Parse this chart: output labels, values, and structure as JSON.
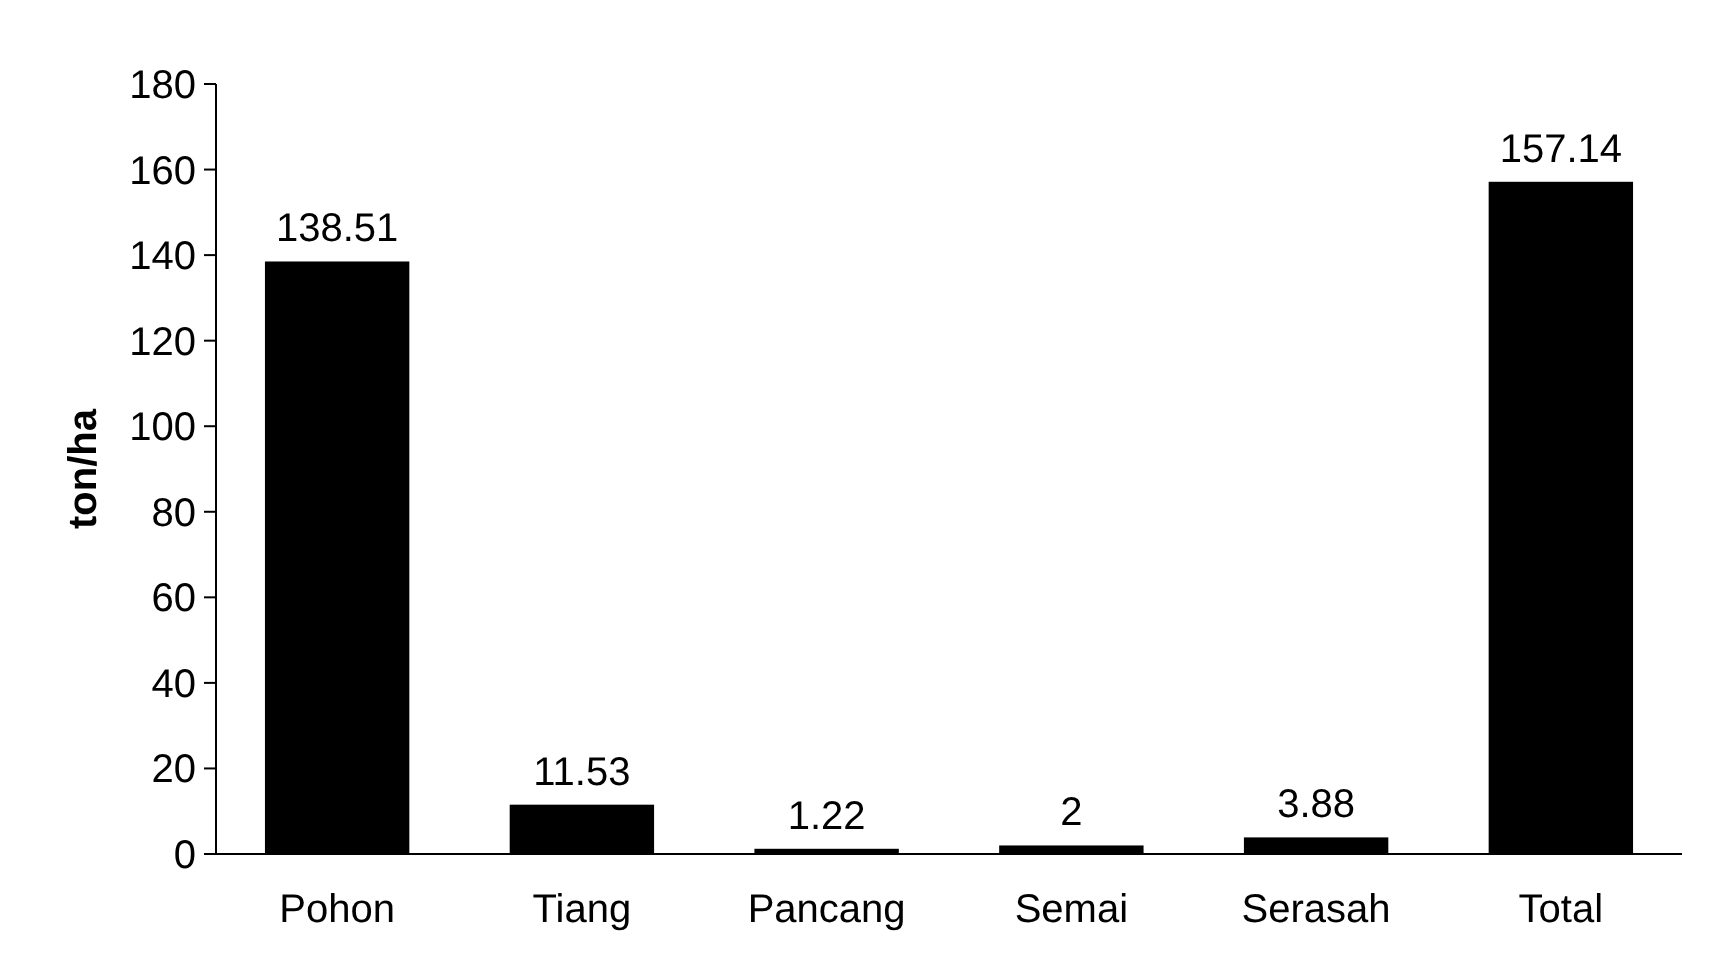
{
  "chart_data": {
    "type": "bar",
    "ylabel": "ton/ha",
    "categories": [
      "Pohon",
      "Tiang",
      "Pancang",
      "Semai",
      "Serasah",
      "Total"
    ],
    "values": [
      138.51,
      11.53,
      1.22,
      2,
      3.88,
      157.14
    ],
    "color": "#000000",
    "ylim": [
      0,
      180
    ],
    "yticks": [
      0,
      20,
      40,
      60,
      80,
      100,
      120,
      140,
      160,
      180
    ],
    "grid": false,
    "data_labels": true
  }
}
